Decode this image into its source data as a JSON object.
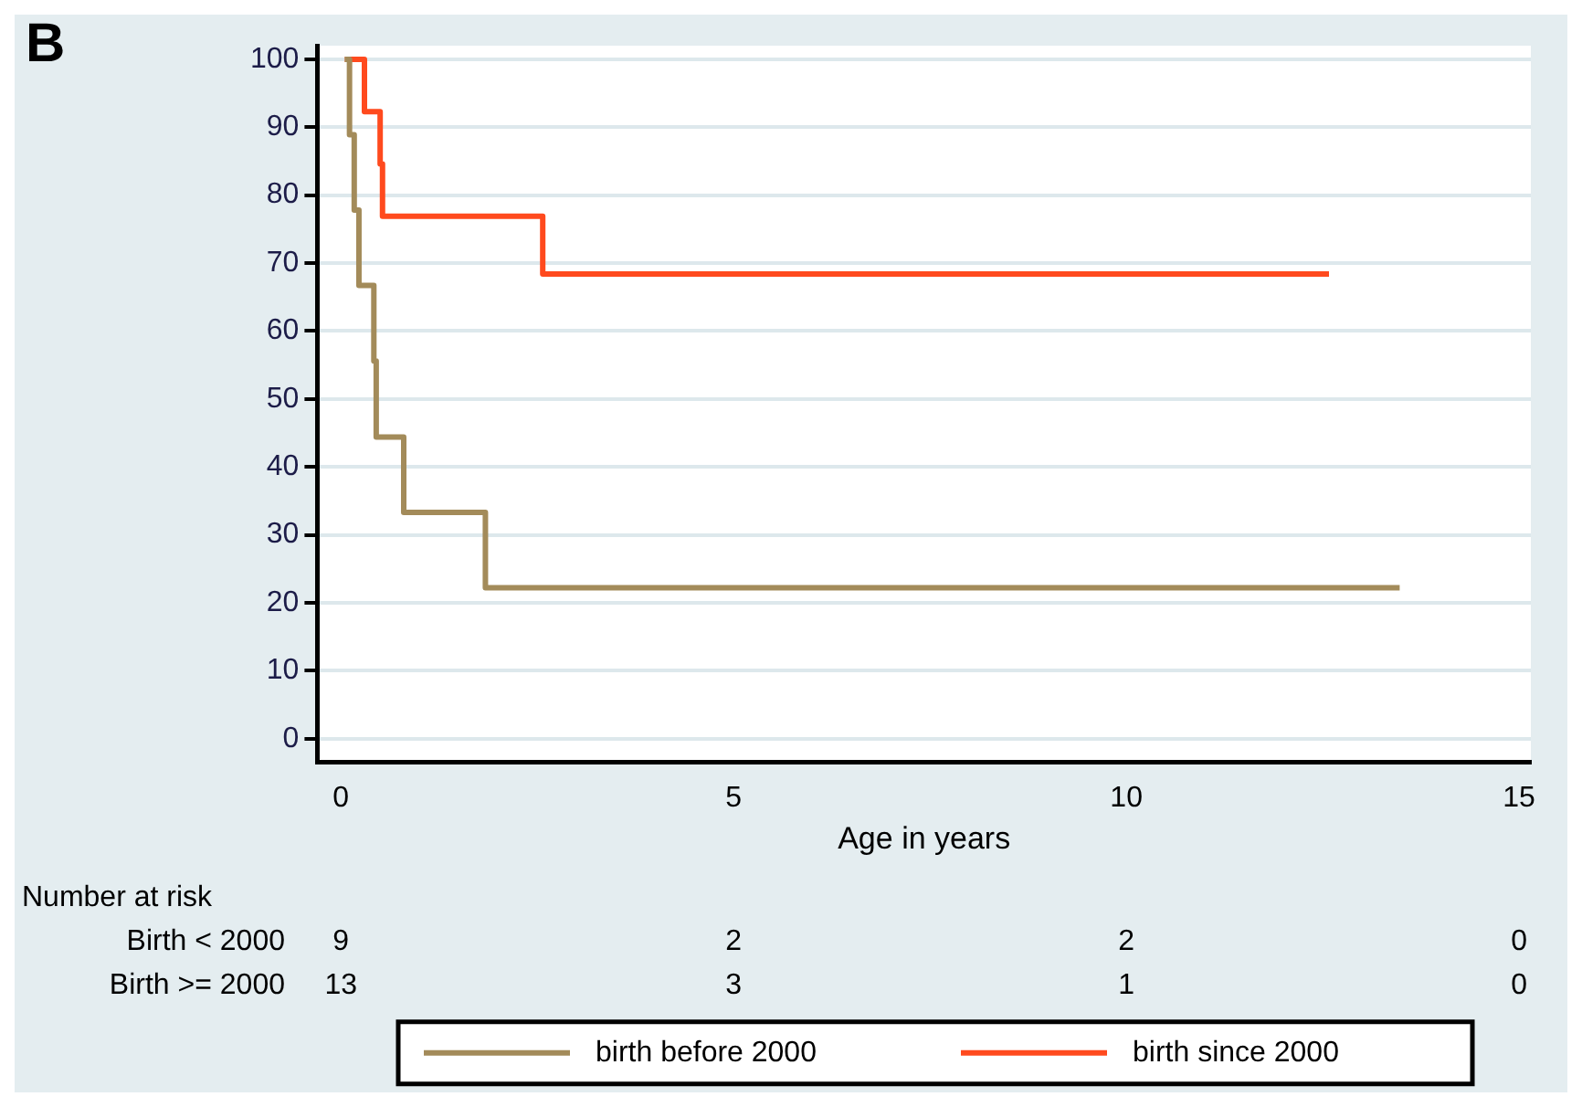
{
  "chart_data": {
    "type": "step",
    "xlabel": "Age in years",
    "xlim": [
      -0.3,
      15.15
    ],
    "xticks": [
      0,
      5,
      10,
      15
    ],
    "ylim": [
      -3.5,
      102
    ],
    "yticks": [
      0,
      10,
      20,
      30,
      40,
      50,
      60,
      70,
      80,
      90,
      100
    ],
    "grid": "y",
    "legend": "bottom",
    "series": [
      {
        "name": "birth before 2000",
        "color": "#a38b5a",
        "x": [
          0.05,
          0.11,
          0.17,
          0.23,
          0.42,
          0.45,
          0.8,
          1.84,
          13.48
        ],
        "values": [
          100,
          88.9,
          77.8,
          66.7,
          55.6,
          44.4,
          33.3,
          22.2,
          22.2
        ]
      },
      {
        "name": "birth since 2000",
        "color": "#ff4a1e",
        "x": [
          0.05,
          0.3,
          0.5,
          0.53,
          2.57,
          12.58
        ],
        "values": [
          100,
          92.3,
          84.6,
          76.9,
          68.4,
          68.4
        ]
      }
    ],
    "annotations": [
      "B",
      "Number at risk",
      "Birth < 2000",
      "9",
      "2",
      "2",
      "0",
      "Birth >= 2000",
      "13",
      "3",
      "1",
      "0"
    ]
  }
}
